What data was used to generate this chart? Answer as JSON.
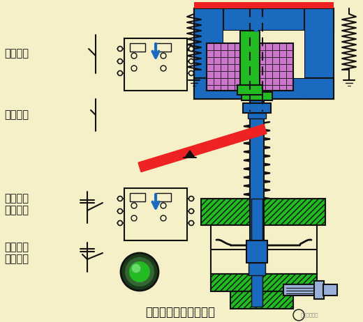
{
  "title": "断电延时型时间继电器",
  "bg_color": "#f5f0c8",
  "labels": {
    "instant_nc": "瞬动常闭",
    "instant_no": "瞬动常开",
    "delay_no": "延时断开\n常开触头",
    "delay_nc": "延时闭合\n常闭触头"
  },
  "colors": {
    "blue": "#1a6abf",
    "green": "#22bb22",
    "red": "#ee2222",
    "purple": "#cc77cc",
    "light_blue": "#9ab0d8",
    "dark": "#111111",
    "bg": "#f5f0c8"
  }
}
